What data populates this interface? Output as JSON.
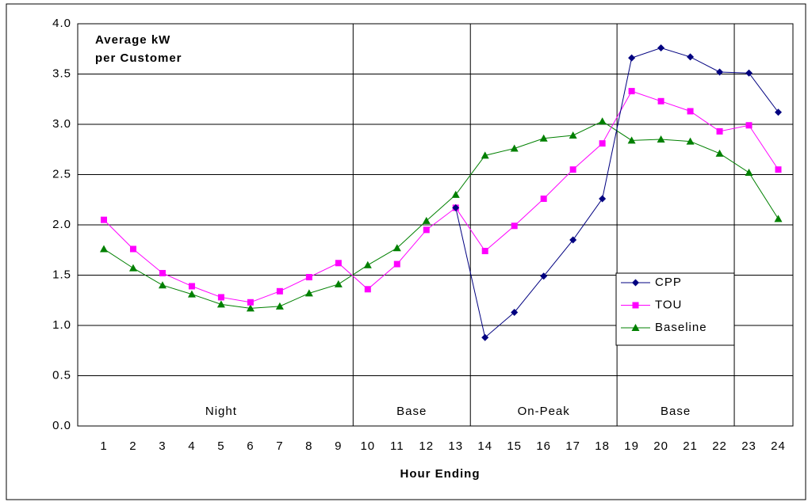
{
  "chart_data": {
    "type": "line",
    "title_lines": [
      "Average kW",
      "per Customer"
    ],
    "x_label": "Hour Ending",
    "categories": [
      "1",
      "2",
      "3",
      "4",
      "5",
      "6",
      "7",
      "8",
      "9",
      "10",
      "11",
      "12",
      "13",
      "14",
      "15",
      "16",
      "17",
      "18",
      "19",
      "20",
      "21",
      "22",
      "23",
      "24"
    ],
    "series": [
      {
        "name": "CPP",
        "color": "#000080",
        "marker": "diamond",
        "values": [
          null,
          null,
          null,
          null,
          null,
          null,
          null,
          null,
          null,
          null,
          null,
          null,
          2.17,
          0.88,
          1.13,
          1.49,
          1.85,
          2.26,
          3.66,
          3.76,
          3.67,
          3.52,
          3.51,
          3.12
        ]
      },
      {
        "name": "TOU",
        "color": "#ff00ff",
        "marker": "square",
        "values": [
          2.05,
          1.76,
          1.52,
          1.39,
          1.28,
          1.23,
          1.34,
          1.48,
          1.62,
          1.36,
          1.61,
          1.95,
          2.17,
          1.74,
          1.99,
          2.26,
          2.55,
          2.81,
          3.33,
          3.23,
          3.13,
          2.93,
          2.99,
          2.55
        ]
      },
      {
        "name": "Baseline",
        "color": "#008000",
        "marker": "triangle",
        "values": [
          1.76,
          1.57,
          1.4,
          1.31,
          1.21,
          1.17,
          1.19,
          1.32,
          1.41,
          1.6,
          1.77,
          2.04,
          2.3,
          2.69,
          2.76,
          2.86,
          2.89,
          3.03,
          2.84,
          2.85,
          2.83,
          2.71,
          2.52,
          2.06
        ]
      }
    ],
    "periods": [
      {
        "label": "Night",
        "start": 1,
        "end": 9
      },
      {
        "label": "Base",
        "start": 10,
        "end": 13
      },
      {
        "label": "On-Peak",
        "start": 14,
        "end": 18
      },
      {
        "label": "Base",
        "start": 19,
        "end": 22
      }
    ],
    "ylim": [
      0,
      4
    ],
    "yticks": [
      {
        "value": 0,
        "label": "0.0"
      },
      {
        "value": 0.5,
        "label": "0.5"
      },
      {
        "value": 1,
        "label": "1.0"
      },
      {
        "value": 1.5,
        "label": "1.5"
      },
      {
        "value": 2,
        "label": "2.0"
      },
      {
        "value": 2.5,
        "label": "2.5"
      },
      {
        "value": 3,
        "label": "3.0"
      },
      {
        "value": 3.5,
        "label": "3.5"
      },
      {
        "value": 4,
        "label": "4.0"
      }
    ],
    "grid": true
  }
}
